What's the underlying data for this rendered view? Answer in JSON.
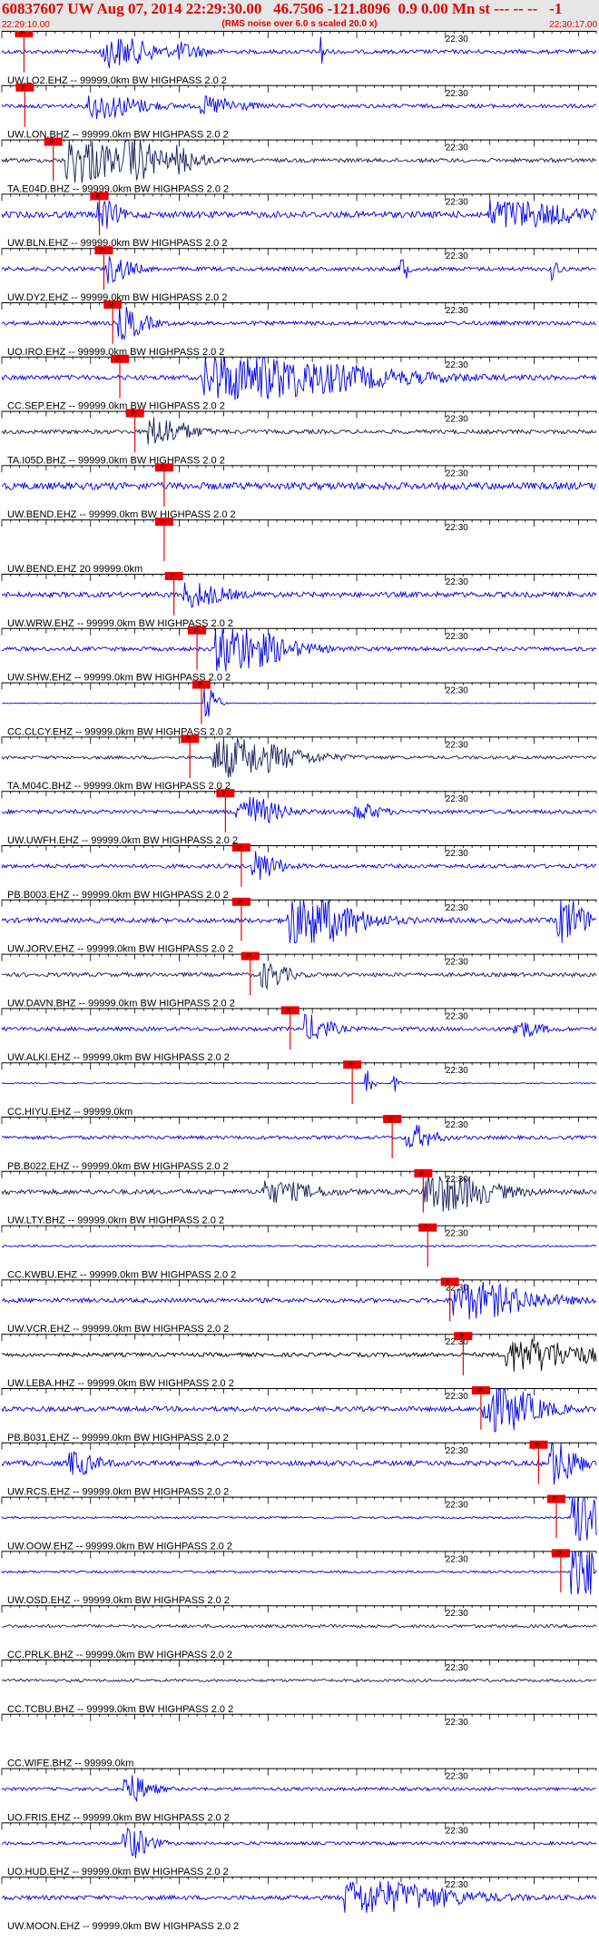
{
  "header": {
    "title": "60837607 UW Aug 07, 2014 22:29:30.00   46.7506 -121.8096  0.9 0.00 Mn st --- -- --   -1",
    "subtitle": "(RMS noise over 6.0 s scaled 20.0 x)",
    "start_time": "22:29:10.00",
    "end_time": "22:30:17.00"
  },
  "colors": {
    "trace_blue": "#0000ee",
    "trace_dark": "#1a1a5c",
    "trace_black": "#000000",
    "pick": "#ee0000",
    "header_text": "#e00000"
  },
  "chart_data": {
    "type": "seismogram",
    "time_axis": {
      "start": "22:29:10.00",
      "end": "22:30:17.00",
      "tick_label": "22:30",
      "tick_label_time_s": 50,
      "duration_s": 67
    },
    "pick_label": "P",
    "stations": [
      {
        "name": "UW.LO2.EHZ -- 99999.0km BW  HIGHPASS  2.0  2",
        "color": "blue",
        "pick_s": 2.5,
        "amp": 1.0,
        "bursts": [
          [
            12.0,
            4,
            1.8
          ],
          [
            20.0,
            2,
            0.8
          ],
          [
            36.0,
            0.3,
            2.2
          ]
        ]
      },
      {
        "name": "UW.LON.BHZ -- 99999.0km BW  HIGHPASS  2.0  2",
        "color": "blue",
        "pick_s": 2.6,
        "amp": 1.0,
        "bursts": [
          [
            10.5,
            4,
            1.5
          ],
          [
            23.0,
            3,
            1.0
          ]
        ]
      },
      {
        "name": "TA.E04D.BHZ -- 99999.0km BW  HIGHPASS  2.0  2",
        "color": "dark",
        "pick_s": 5.8,
        "amp": 1.0,
        "bursts": [
          [
            8.0,
            4,
            3.0
          ],
          [
            14.5,
            3,
            2.2
          ],
          [
            20.0,
            2,
            1.2
          ]
        ]
      },
      {
        "name": "UW.BLN.EHZ -- 99999.0km BW  HIGHPASS  2.0  2",
        "color": "blue",
        "pick_s": 11.0,
        "amp": 1.6,
        "bursts": [
          [
            11.0,
            1.5,
            1.8
          ],
          [
            56.0,
            6,
            1.6
          ]
        ]
      },
      {
        "name": "UW.DY2.EHZ -- 99999.0km BW  HIGHPASS  2.0  2",
        "color": "blue",
        "pick_s": 11.5,
        "amp": 1.0,
        "bursts": [
          [
            12.0,
            2,
            1.6
          ],
          [
            45.0,
            0.5,
            2.0
          ],
          [
            62.0,
            0.5,
            1.5
          ]
        ]
      },
      {
        "name": "UO.IRO.EHZ -- 99999.0km BW  HIGHPASS  2.0  2",
        "color": "blue",
        "pick_s": 12.5,
        "amp": 1.0,
        "bursts": [
          [
            13.5,
            2,
            2.0
          ]
        ]
      },
      {
        "name": "CC.SEP.EHZ -- 99999.0km BW  HIGHPASS  2.0  2",
        "color": "blue",
        "pick_s": 13.3,
        "amp": 1.2,
        "bursts": [
          [
            25.0,
            12,
            2.8
          ]
        ]
      },
      {
        "name": "TA.I05D.BHZ -- 99999.0km BW  HIGHPASS  2.0  2",
        "color": "dark",
        "pick_s": 15.0,
        "amp": 1.0,
        "bursts": [
          [
            17.0,
            3,
            1.8
          ]
        ]
      },
      {
        "name": "UW.BEND.EHZ -- 99999.0km BW  HIGHPASS  2.0  2",
        "color": "blue",
        "pick_s": 18.3,
        "amp": 1.8,
        "bursts": []
      },
      {
        "name": "UW.BEND.EHZ 20 99999.0km",
        "color": "blue",
        "pick_s": 18.3,
        "amp": 0.0,
        "bursts": []
      },
      {
        "name": "UW.WRW.EHZ -- 99999.0km BW  HIGHPASS  2.0  2",
        "color": "blue",
        "pick_s": 19.4,
        "amp": 1.3,
        "bursts": [
          [
            21.0,
            3,
            1.4
          ]
        ]
      },
      {
        "name": "UW.SHW.EHZ -- 99999.0km BW  HIGHPASS  2.0  2",
        "color": "blue",
        "pick_s": 22.0,
        "amp": 1.0,
        "bursts": [
          [
            25.0,
            5,
            3.0
          ]
        ]
      },
      {
        "name": "CC.CLCY.EHZ -- 99999.0km BW  HIGHPASS  2.0  2",
        "color": "blue",
        "pick_s": 22.5,
        "amp": 0.15,
        "bursts": [
          [
            23.0,
            1,
            2.0
          ]
        ]
      },
      {
        "name": "TA.M04C.BHZ -- 99999.0km BW  HIGHPASS  2.0  2",
        "color": "dark",
        "pick_s": 21.2,
        "amp": 0.8,
        "bursts": [
          [
            25.0,
            6,
            2.4
          ]
        ]
      },
      {
        "name": "UW.UWFH.EHZ -- 99999.0km BW  HIGHPASS  2.0  2",
        "color": "blue",
        "pick_s": 25.2,
        "amp": 1.0,
        "bursts": [
          [
            27.0,
            3,
            2.0
          ],
          [
            40.0,
            2,
            1.0
          ]
        ]
      },
      {
        "name": "PB.B003.EHZ -- 99999.0km BW  HIGHPASS  2.0  2",
        "color": "blue",
        "pick_s": 27.0,
        "amp": 1.0,
        "bursts": [
          [
            28.5,
            2,
            1.8
          ]
        ]
      },
      {
        "name": "UW.JORV.EHZ -- 99999.0km BW  HIGHPASS  2.0  2",
        "color": "blue",
        "pick_s": 27.0,
        "amp": 1.2,
        "bursts": [
          [
            33.0,
            5,
            3.5
          ],
          [
            63.0,
            2,
            3.0
          ]
        ]
      },
      {
        "name": "UW.DAVN.BHZ -- 99999.0km BW  HIGHPASS  2.0  2",
        "color": "dark",
        "pick_s": 28.0,
        "amp": 1.0,
        "bursts": [
          [
            29.5,
            2,
            1.6
          ]
        ]
      },
      {
        "name": "UW.ALKI.EHZ -- 99999.0km BW  HIGHPASS  2.0  2",
        "color": "blue",
        "pick_s": 32.5,
        "amp": 1.0,
        "bursts": [
          [
            34.5,
            2,
            1.6
          ],
          [
            58.0,
            2,
            1.0
          ]
        ]
      },
      {
        "name": "CC.HIYU.EHZ -- 99999.0km",
        "color": "blue",
        "pick_s": 39.5,
        "amp": 0.3,
        "bursts": [
          [
            41.0,
            0.6,
            2.2
          ],
          [
            44.0,
            0.5,
            1.2
          ]
        ]
      },
      {
        "name": "PB.B022.EHZ -- 99999.0km BW  HIGHPASS  2.0  2",
        "color": "blue",
        "pick_s": 44.0,
        "amp": 0.9,
        "bursts": [
          [
            46.0,
            2,
            1.5
          ]
        ]
      },
      {
        "name": "UW.LTY.BHZ -- 99999.0km BW  HIGHPASS  2.0  2",
        "color": "dark",
        "pick_s": 47.5,
        "amp": 1.2,
        "bursts": [
          [
            48.5,
            5,
            2.4
          ],
          [
            30.0,
            4,
            1.2
          ]
        ]
      },
      {
        "name": "CC.KWBU.EHZ -- 99999.0km BW  HIGHPASS  2.0  2",
        "color": "blue",
        "pick_s": 48.0,
        "amp": 0.5,
        "bursts": []
      },
      {
        "name": "UW.VCR.EHZ -- 99999.0km BW  HIGHPASS  2.0  2",
        "color": "blue",
        "pick_s": 50.5,
        "amp": 1.1,
        "bursts": [
          [
            52.0,
            6,
            2.2
          ]
        ]
      },
      {
        "name": "UW.LEBA.HHZ -- 99999.0km BW  HIGHPASS  2.0  2",
        "color": "black",
        "pick_s": 52.0,
        "amp": 1.0,
        "bursts": [
          [
            58.0,
            6,
            2.0
          ]
        ]
      },
      {
        "name": "PB.B031.EHZ -- 99999.0km BW  HIGHPASS  2.0  2",
        "color": "blue",
        "pick_s": 54.0,
        "amp": 1.2,
        "bursts": [
          [
            55.0,
            4,
            3.0
          ]
        ]
      },
      {
        "name": "UW.RCS.EHZ -- 99999.0km BW  HIGHPASS  2.0  2",
        "color": "blue",
        "pick_s": 60.5,
        "amp": 1.3,
        "bursts": [
          [
            62.0,
            2,
            3.0
          ],
          [
            8.0,
            2,
            1.4
          ]
        ]
      },
      {
        "name": "UW.OOW.EHZ -- 99999.0km BW  HIGHPASS  2.0  2",
        "color": "blue",
        "pick_s": 62.5,
        "amp": 0.5,
        "bursts": [
          [
            64.5,
            2,
            6.0
          ]
        ]
      },
      {
        "name": "UW.OSD.EHZ -- 99999.0km BW  HIGHPASS  2.0  2",
        "color": "blue",
        "pick_s": 63.0,
        "amp": 0.6,
        "bursts": [
          [
            64.5,
            2,
            5.0
          ]
        ]
      },
      {
        "name": "CC.PRLK.BHZ -- 99999.0km BW  HIGHPASS  2.0  2",
        "color": "dark",
        "pick_s": null,
        "amp": 0.8,
        "bursts": []
      },
      {
        "name": "CC.TCBU.BHZ -- 99999.0km BW  HIGHPASS  2.0  2",
        "color": "dark",
        "pick_s": null,
        "amp": 0.7,
        "bursts": []
      },
      {
        "name": "CC.WIFE.BHZ -- 99999.0km",
        "color": "blue",
        "pick_s": null,
        "amp": 0.0,
        "bursts": []
      },
      {
        "name": "UO.FRIS.EHZ -- 99999.0km BW  HIGHPASS  2.0  2",
        "color": "blue",
        "pick_s": null,
        "amp": 0.8,
        "bursts": [
          [
            14.0,
            2,
            1.8
          ]
        ]
      },
      {
        "name": "UO.HUD.EHZ -- 99999.0km BW  HIGHPASS  2.0  2",
        "color": "blue",
        "pick_s": null,
        "amp": 0.8,
        "bursts": [
          [
            14.0,
            2,
            2.0
          ]
        ]
      },
      {
        "name": "UW.MOON.EHZ -- 99999.0km BW  HIGHPASS  2.0  2",
        "color": "blue",
        "pick_s": null,
        "amp": 1.1,
        "bursts": [
          [
            40.0,
            8,
            2.0
          ]
        ]
      }
    ]
  }
}
